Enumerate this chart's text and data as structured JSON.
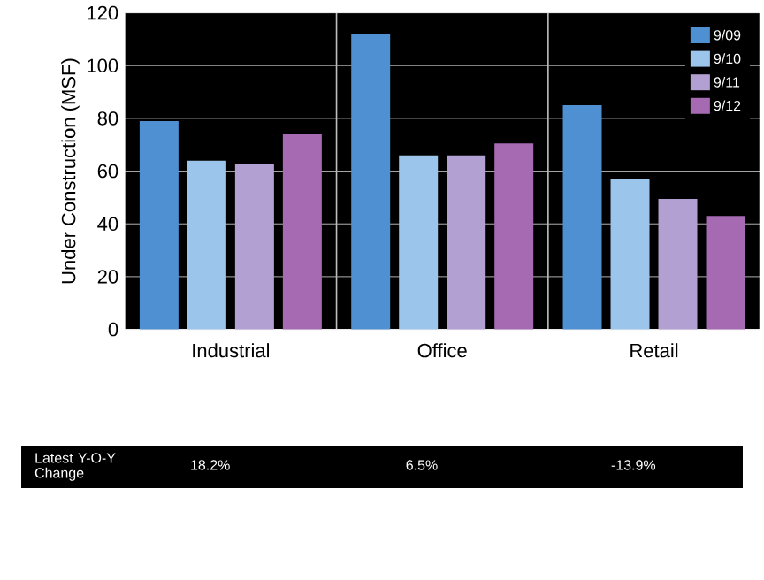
{
  "chart_data": {
    "type": "bar",
    "ylabel": "Under Construction (MSF)",
    "categories": [
      "Industrial",
      "Office",
      "Retail"
    ],
    "series": [
      {
        "name": "9/09",
        "color": "#4f90d2",
        "values": [
          79,
          112,
          85
        ]
      },
      {
        "name": "9/10",
        "color": "#9cc5ec",
        "values": [
          64,
          66,
          57
        ]
      },
      {
        "name": "9/11",
        "color": "#b3a0d2",
        "values": [
          62.5,
          66,
          49.5
        ]
      },
      {
        "name": "9/12",
        "color": "#a56ab2",
        "values": [
          74,
          70.5,
          43
        ]
      }
    ],
    "ylim": [
      0,
      120
    ],
    "yticks": [
      0,
      20,
      40,
      60,
      80,
      100,
      120
    ],
    "grid": "y",
    "legend": "top right",
    "annotations": [
      "Latest Y-O-Y Change",
      "18.2%",
      "6.5%",
      "-13.9%"
    ]
  }
}
